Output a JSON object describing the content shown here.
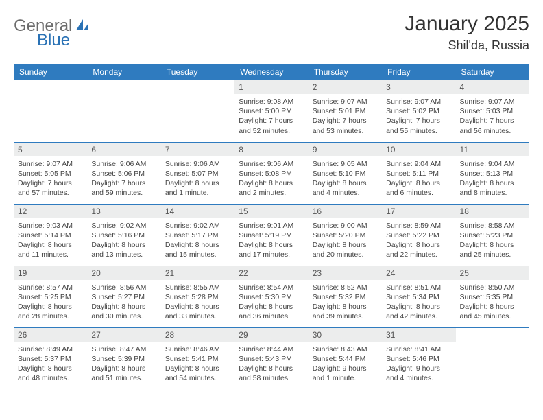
{
  "brand": {
    "part1": "General",
    "part2": "Blue"
  },
  "title": "January 2025",
  "location": "Shil'da, Russia",
  "colors": {
    "header_bg": "#2f7bbf",
    "header_fg": "#ffffff",
    "daynum_bg": "#eceded",
    "row_border": "#2f7bbf",
    "brand_gray": "#6b6b6b",
    "brand_blue": "#2a72b5"
  },
  "dayNames": [
    "Sunday",
    "Monday",
    "Tuesday",
    "Wednesday",
    "Thursday",
    "Friday",
    "Saturday"
  ],
  "weeks": [
    [
      {
        "n": "",
        "sr": "",
        "ss": "",
        "dl": ""
      },
      {
        "n": "",
        "sr": "",
        "ss": "",
        "dl": ""
      },
      {
        "n": "",
        "sr": "",
        "ss": "",
        "dl": ""
      },
      {
        "n": "1",
        "sr": "9:08 AM",
        "ss": "5:00 PM",
        "dl": "7 hours and 52 minutes."
      },
      {
        "n": "2",
        "sr": "9:07 AM",
        "ss": "5:01 PM",
        "dl": "7 hours and 53 minutes."
      },
      {
        "n": "3",
        "sr": "9:07 AM",
        "ss": "5:02 PM",
        "dl": "7 hours and 55 minutes."
      },
      {
        "n": "4",
        "sr": "9:07 AM",
        "ss": "5:03 PM",
        "dl": "7 hours and 56 minutes."
      }
    ],
    [
      {
        "n": "5",
        "sr": "9:07 AM",
        "ss": "5:05 PM",
        "dl": "7 hours and 57 minutes."
      },
      {
        "n": "6",
        "sr": "9:06 AM",
        "ss": "5:06 PM",
        "dl": "7 hours and 59 minutes."
      },
      {
        "n": "7",
        "sr": "9:06 AM",
        "ss": "5:07 PM",
        "dl": "8 hours and 1 minute."
      },
      {
        "n": "8",
        "sr": "9:06 AM",
        "ss": "5:08 PM",
        "dl": "8 hours and 2 minutes."
      },
      {
        "n": "9",
        "sr": "9:05 AM",
        "ss": "5:10 PM",
        "dl": "8 hours and 4 minutes."
      },
      {
        "n": "10",
        "sr": "9:04 AM",
        "ss": "5:11 PM",
        "dl": "8 hours and 6 minutes."
      },
      {
        "n": "11",
        "sr": "9:04 AM",
        "ss": "5:13 PM",
        "dl": "8 hours and 8 minutes."
      }
    ],
    [
      {
        "n": "12",
        "sr": "9:03 AM",
        "ss": "5:14 PM",
        "dl": "8 hours and 11 minutes."
      },
      {
        "n": "13",
        "sr": "9:02 AM",
        "ss": "5:16 PM",
        "dl": "8 hours and 13 minutes."
      },
      {
        "n": "14",
        "sr": "9:02 AM",
        "ss": "5:17 PM",
        "dl": "8 hours and 15 minutes."
      },
      {
        "n": "15",
        "sr": "9:01 AM",
        "ss": "5:19 PM",
        "dl": "8 hours and 17 minutes."
      },
      {
        "n": "16",
        "sr": "9:00 AM",
        "ss": "5:20 PM",
        "dl": "8 hours and 20 minutes."
      },
      {
        "n": "17",
        "sr": "8:59 AM",
        "ss": "5:22 PM",
        "dl": "8 hours and 22 minutes."
      },
      {
        "n": "18",
        "sr": "8:58 AM",
        "ss": "5:23 PM",
        "dl": "8 hours and 25 minutes."
      }
    ],
    [
      {
        "n": "19",
        "sr": "8:57 AM",
        "ss": "5:25 PM",
        "dl": "8 hours and 28 minutes."
      },
      {
        "n": "20",
        "sr": "8:56 AM",
        "ss": "5:27 PM",
        "dl": "8 hours and 30 minutes."
      },
      {
        "n": "21",
        "sr": "8:55 AM",
        "ss": "5:28 PM",
        "dl": "8 hours and 33 minutes."
      },
      {
        "n": "22",
        "sr": "8:54 AM",
        "ss": "5:30 PM",
        "dl": "8 hours and 36 minutes."
      },
      {
        "n": "23",
        "sr": "8:52 AM",
        "ss": "5:32 PM",
        "dl": "8 hours and 39 minutes."
      },
      {
        "n": "24",
        "sr": "8:51 AM",
        "ss": "5:34 PM",
        "dl": "8 hours and 42 minutes."
      },
      {
        "n": "25",
        "sr": "8:50 AM",
        "ss": "5:35 PM",
        "dl": "8 hours and 45 minutes."
      }
    ],
    [
      {
        "n": "26",
        "sr": "8:49 AM",
        "ss": "5:37 PM",
        "dl": "8 hours and 48 minutes."
      },
      {
        "n": "27",
        "sr": "8:47 AM",
        "ss": "5:39 PM",
        "dl": "8 hours and 51 minutes."
      },
      {
        "n": "28",
        "sr": "8:46 AM",
        "ss": "5:41 PM",
        "dl": "8 hours and 54 minutes."
      },
      {
        "n": "29",
        "sr": "8:44 AM",
        "ss": "5:43 PM",
        "dl": "8 hours and 58 minutes."
      },
      {
        "n": "30",
        "sr": "8:43 AM",
        "ss": "5:44 PM",
        "dl": "9 hours and 1 minute."
      },
      {
        "n": "31",
        "sr": "8:41 AM",
        "ss": "5:46 PM",
        "dl": "9 hours and 4 minutes."
      },
      {
        "n": "",
        "sr": "",
        "ss": "",
        "dl": ""
      }
    ]
  ],
  "labels": {
    "sunrise": "Sunrise:",
    "sunset": "Sunset:",
    "daylight": "Daylight:"
  }
}
